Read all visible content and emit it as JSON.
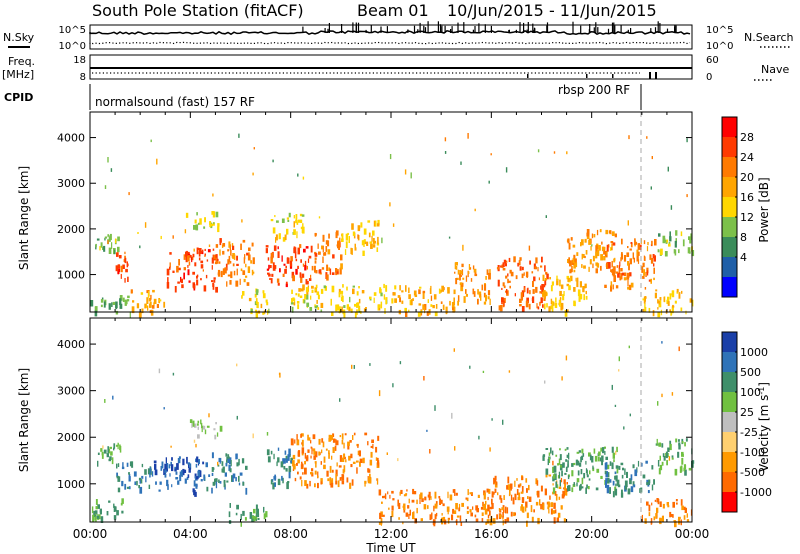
{
  "header": {
    "station": "South Pole Station (fitACF)",
    "beam": "Beam 01",
    "date_range": "10/Jun/2015 - 11/Jun/2015"
  },
  "status_panel": {
    "left_labels": {
      "nsky": "N.Sky",
      "freq_line1": "Freq.",
      "freq_line2": "[MHz]",
      "cpid": "CPID"
    },
    "right_labels": {
      "nsearch": "N.Search",
      "nave": "Nave"
    },
    "noise_ticks_left": [
      "10^5",
      "10^0"
    ],
    "noise_ticks_right": [
      "10^5",
      "10^0"
    ],
    "freq_ticks_left": [
      "18",
      "8"
    ],
    "nave_ticks_right": [
      "60",
      "0"
    ],
    "cpid_segments": [
      {
        "label": "normalsound (fast) 157 RF",
        "start_hour": 0,
        "end_hour": 22
      },
      {
        "label": "rbsp 200 RF",
        "start_hour": 22,
        "end_hour": 24
      }
    ]
  },
  "power_colorbar": {
    "label": "Power [dB]",
    "ticks": [
      "28",
      "24",
      "20",
      "16",
      "12",
      "8",
      "4"
    ],
    "colors": [
      "#ff0000",
      "#ff3a00",
      "#ff7a00",
      "#ffa500",
      "#ffd700",
      "#7cc04a",
      "#3a8c5a",
      "#1f5fa8",
      "#0000ff"
    ]
  },
  "velocity_colorbar": {
    "label": "Velocity [m s",
    "label_sup": "-1",
    "label_end": "]",
    "ticks": [
      "1000",
      "500",
      "100",
      "25",
      "-25",
      "-100",
      "-500",
      "-1000"
    ],
    "colors": [
      "#1a3fa8",
      "#2f73b8",
      "#3f8f6a",
      "#70c040",
      "#bfbfbf",
      "#ffd070",
      "#ff9a00",
      "#ff6a00",
      "#ff0000"
    ]
  },
  "axes": {
    "ylabel": "Slant Range [km]",
    "xlabel": "Time UT",
    "yticks": [
      "4000",
      "3000",
      "2000",
      "1000"
    ],
    "xticks": [
      "00:00",
      "04:00",
      "08:00",
      "12:00",
      "16:00",
      "20:00",
      "00:00"
    ]
  },
  "chart_data": [
    {
      "type": "heatmap",
      "panel": "power",
      "x_range_hours": [
        0,
        24
      ],
      "y_range_km": [
        180,
        4560
      ],
      "clim_db": [
        0,
        32
      ],
      "regions": [
        {
          "t0": 0.0,
          "t1": 1.6,
          "r0": 180,
          "r1": 560,
          "power": 10
        },
        {
          "t0": 0.2,
          "t1": 1.2,
          "r0": 1500,
          "r1": 1900,
          "power": 12
        },
        {
          "t0": 1.0,
          "t1": 1.5,
          "r0": 850,
          "r1": 1500,
          "power": 28
        },
        {
          "t0": 1.6,
          "t1": 3.0,
          "r0": 180,
          "r1": 700,
          "power": 20
        },
        {
          "t0": 3.0,
          "t1": 5.0,
          "r0": 700,
          "r1": 1600,
          "power": 28
        },
        {
          "t0": 3.8,
          "t1": 5.2,
          "r0": 2050,
          "r1": 2400,
          "power": 14
        },
        {
          "t0": 5.0,
          "t1": 6.5,
          "r0": 800,
          "r1": 1800,
          "power": 24
        },
        {
          "t0": 6.0,
          "t1": 7.2,
          "r0": 180,
          "r1": 700,
          "power": 16
        },
        {
          "t0": 7.0,
          "t1": 8.8,
          "r0": 800,
          "r1": 1700,
          "power": 28
        },
        {
          "t0": 7.2,
          "t1": 8.5,
          "r0": 1800,
          "r1": 2400,
          "power": 16
        },
        {
          "t0": 8.8,
          "t1": 10.0,
          "r0": 1000,
          "r1": 2000,
          "power": 24
        },
        {
          "t0": 10.0,
          "t1": 11.5,
          "r0": 1500,
          "r1": 2200,
          "power": 18
        },
        {
          "t0": 8.0,
          "t1": 12.0,
          "r0": 180,
          "r1": 800,
          "power": 16
        },
        {
          "t0": 12.0,
          "t1": 14.5,
          "r0": 180,
          "r1": 800,
          "power": 20
        },
        {
          "t0": 14.5,
          "t1": 16.0,
          "r0": 400,
          "r1": 1300,
          "power": 22
        },
        {
          "t0": 16.2,
          "t1": 18.2,
          "r0": 300,
          "r1": 1400,
          "power": 26
        },
        {
          "t0": 18.0,
          "t1": 19.8,
          "r0": 180,
          "r1": 1000,
          "power": 18
        },
        {
          "t0": 19.0,
          "t1": 21.0,
          "r0": 1100,
          "r1": 2000,
          "power": 22
        },
        {
          "t0": 20.5,
          "t1": 22.5,
          "r0": 700,
          "r1": 1800,
          "power": 24
        },
        {
          "t0": 22.0,
          "t1": 24.0,
          "r0": 180,
          "r1": 700,
          "power": 18
        },
        {
          "t0": 22.5,
          "t1": 24.0,
          "r0": 1500,
          "r1": 2000,
          "power": 12
        }
      ]
    },
    {
      "type": "heatmap",
      "panel": "velocity",
      "x_range_hours": [
        0,
        24
      ],
      "y_range_km": [
        180,
        4560
      ],
      "clim_ms": [
        -1000,
        1000
      ],
      "regions": [
        {
          "t0": 0.0,
          "t1": 1.6,
          "r0": 300,
          "r1": 700,
          "velocity": 100
        },
        {
          "t0": 0.3,
          "t1": 1.2,
          "r0": 1500,
          "r1": 1900,
          "velocity": 100
        },
        {
          "t0": 1.0,
          "t1": 2.5,
          "r0": 900,
          "r1": 1500,
          "velocity": 500
        },
        {
          "t0": 2.5,
          "t1": 4.5,
          "r0": 800,
          "r1": 1600,
          "velocity": 1000
        },
        {
          "t0": 3.8,
          "t1": 5.2,
          "r0": 2050,
          "r1": 2400,
          "velocity": 25
        },
        {
          "t0": 4.5,
          "t1": 6.2,
          "r0": 900,
          "r1": 1700,
          "velocity": 500
        },
        {
          "t0": 5.5,
          "t1": 7.0,
          "r0": 180,
          "r1": 600,
          "velocity": 100
        },
        {
          "t0": 7.0,
          "t1": 8.0,
          "r0": 1000,
          "r1": 1800,
          "velocity": 500
        },
        {
          "t0": 8.0,
          "t1": 11.5,
          "r0": 1000,
          "r1": 2100,
          "velocity": -500
        },
        {
          "t0": 11.5,
          "t1": 16.0,
          "r0": 180,
          "r1": 900,
          "velocity": -500
        },
        {
          "t0": 16.0,
          "t1": 19.0,
          "r0": 200,
          "r1": 1200,
          "velocity": -500
        },
        {
          "t0": 18.0,
          "t1": 21.0,
          "r0": 900,
          "r1": 1800,
          "velocity": 100
        },
        {
          "t0": 20.5,
          "t1": 22.5,
          "r0": 800,
          "r1": 1500,
          "velocity": 500
        },
        {
          "t0": 22.0,
          "t1": 24.0,
          "r0": 180,
          "r1": 700,
          "velocity": -500
        },
        {
          "t0": 22.5,
          "t1": 24.0,
          "r0": 1300,
          "r1": 2000,
          "velocity": 100
        }
      ]
    }
  ]
}
